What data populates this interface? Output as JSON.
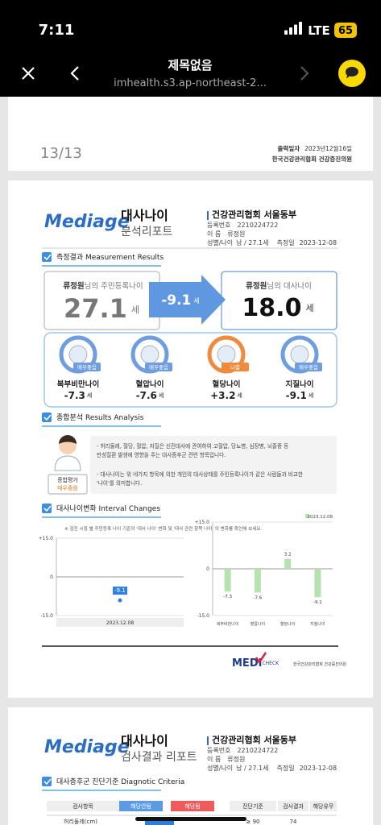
{
  "status": {
    "time": "7:11",
    "network": "LTE",
    "battery": "65"
  },
  "nav": {
    "title": "제목없음",
    "url": "imhealth.s3.ap-northeast-2..."
  },
  "page1": {
    "page_number": "13/13",
    "print_label": "출력일자",
    "print_date": "2023년12월16일",
    "issuer": "한국건강관리협회 건강증진의원"
  },
  "report": {
    "logo": "Mediage",
    "title": "대사나이",
    "subtitle": "분석리포트",
    "org": "건강관리협회 서울동부",
    "reg_label": "등록번호",
    "reg_no": "2210224722",
    "name_label": "이 름",
    "name": "류정원",
    "sex_age_label": "성별/나이",
    "sex_age": "남 / 27.1세",
    "date_label": "측정일",
    "date": "2023-12-08"
  },
  "measurement": {
    "heading": "측정결과 Measurement Results",
    "name": "류정원",
    "resident_label": "님의 주민등록나이",
    "resident_age": "27.1",
    "unit": "세",
    "diff": "-9.1",
    "metabolic_label": "님의 대사나이",
    "metabolic_age": "18.0",
    "items": [
      {
        "label": "복부비만나이",
        "badge": "매우좋음",
        "value": "-7.3",
        "color": "#6f9ee0"
      },
      {
        "label": "혈압나이",
        "badge": "매우좋음",
        "value": "-7.6",
        "color": "#6f9ee0"
      },
      {
        "label": "혈당나이",
        "badge": "나쁨",
        "value": "+3.2",
        "color": "#f08a3c"
      },
      {
        "label": "지질나이",
        "badge": "매우좋음",
        "value": "-9.1",
        "color": "#6f9ee0"
      }
    ]
  },
  "analysis": {
    "heading": "종합분석 Results Analysis",
    "eval_label": "종합평가",
    "eval": "매우좋음",
    "bullets": [
      [
        "- 허리둘레, 혈당, 혈압, 지질은 신진대사에 관여하여 고혈압, 당뇨병, 심장병, 뇌졸중 등",
        "만성질환 발생에 영향을 주는 대사증후군 관련 항목입니다."
      ],
      [
        "- 대사나이는 위 네가지 항목에 의한 개인의 대사상태를 주민등록나이가 같은 사람들과 비교한",
        "'나이'를 의미합니다."
      ]
    ]
  },
  "changes": {
    "heading": "대사나이변화 Interval Changes",
    "note": "※ 검진 시점 별 주민등록 나이 기준의 '대사 나이' 변화 및 '대사 관련 항목 나이' 의 변화를 확인해 보세요."
  },
  "chart_data": [
    {
      "type": "line",
      "categories": [
        "2023.12.08"
      ],
      "series": [
        {
          "color": "#2d7ee0",
          "values": [
            -9.1
          ]
        }
      ],
      "ylim": [
        -15,
        15
      ],
      "yticks": [
        {
          "value": 15,
          "label": "+15.0"
        },
        0,
        {
          "value": -15,
          "label": "-15.0"
        }
      ]
    },
    {
      "type": "bar",
      "categories": [
        "복부비만나이",
        "혈압나이",
        "혈당나이",
        "지질나이"
      ],
      "series": [
        {
          "name": "2023.12.08",
          "color": "#b6e2b0",
          "values": [
            -7.3,
            -7.6,
            3.2,
            -9.1
          ]
        }
      ],
      "ylim": [
        -15,
        15
      ],
      "yticks": [
        {
          "value": 15,
          "label": "+15.0"
        },
        0,
        {
          "value": -15,
          "label": "-15.0"
        }
      ],
      "legend": "top-right"
    }
  ],
  "footer": {
    "logo_a": "MEDI",
    "logo_b": "CHECK",
    "org": "한국건강관리협회 건강증진의원"
  },
  "page3": {
    "logo": "Mediage",
    "title": "대사나이",
    "subtitle": "검사결과 리포트",
    "org": "건강관리협회 서울동부",
    "reg_label": "등록번호",
    "reg_no": "2210224722",
    "name_label": "이 름",
    "name": "류정원",
    "sex_age_label": "성별/나이",
    "sex_age": "남 / 27.1세",
    "date_label": "측정일",
    "date": "2023-12-08",
    "heading": "대사증후군 진단기준 Diagnotic Criteria",
    "table": {
      "header": [
        "검사항목",
        "해당안됨",
        "해당됨",
        "진단기준",
        "검사결과",
        "해당유무"
      ],
      "rows": [
        [
          "허리둘레(cm)",
          "≥ 90",
          "74"
        ]
      ]
    }
  }
}
